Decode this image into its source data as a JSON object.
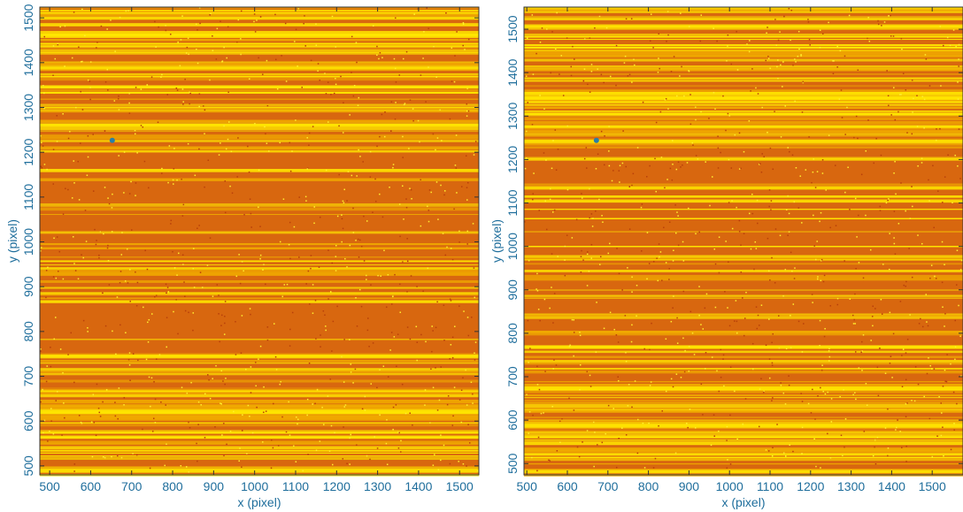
{
  "chart_data": [
    {
      "type": "image",
      "x_label": "x (pixel)",
      "y_label": "y (pixel)",
      "xlim": [
        476,
        1547
      ],
      "ylim": [
        480,
        1524
      ],
      "xticks": [
        500,
        600,
        700,
        800,
        900,
        1000,
        1100,
        1200,
        1300,
        1400,
        1500
      ],
      "yticks": [
        500,
        600,
        700,
        800,
        900,
        1000,
        1100,
        1200,
        1300,
        1400,
        1500
      ]
    },
    {
      "type": "image",
      "x_label": "x (pixel)",
      "y_label": "y (pixel)",
      "xlim": [
        493,
        1576
      ],
      "ylim": [
        474,
        1551
      ],
      "xticks": [
        500,
        600,
        700,
        800,
        900,
        1000,
        1100,
        1200,
        1300,
        1400,
        1500
      ],
      "yticks": [
        500,
        600,
        700,
        800,
        900,
        1000,
        1100,
        1200,
        1300,
        1400,
        1500
      ]
    }
  ]
}
